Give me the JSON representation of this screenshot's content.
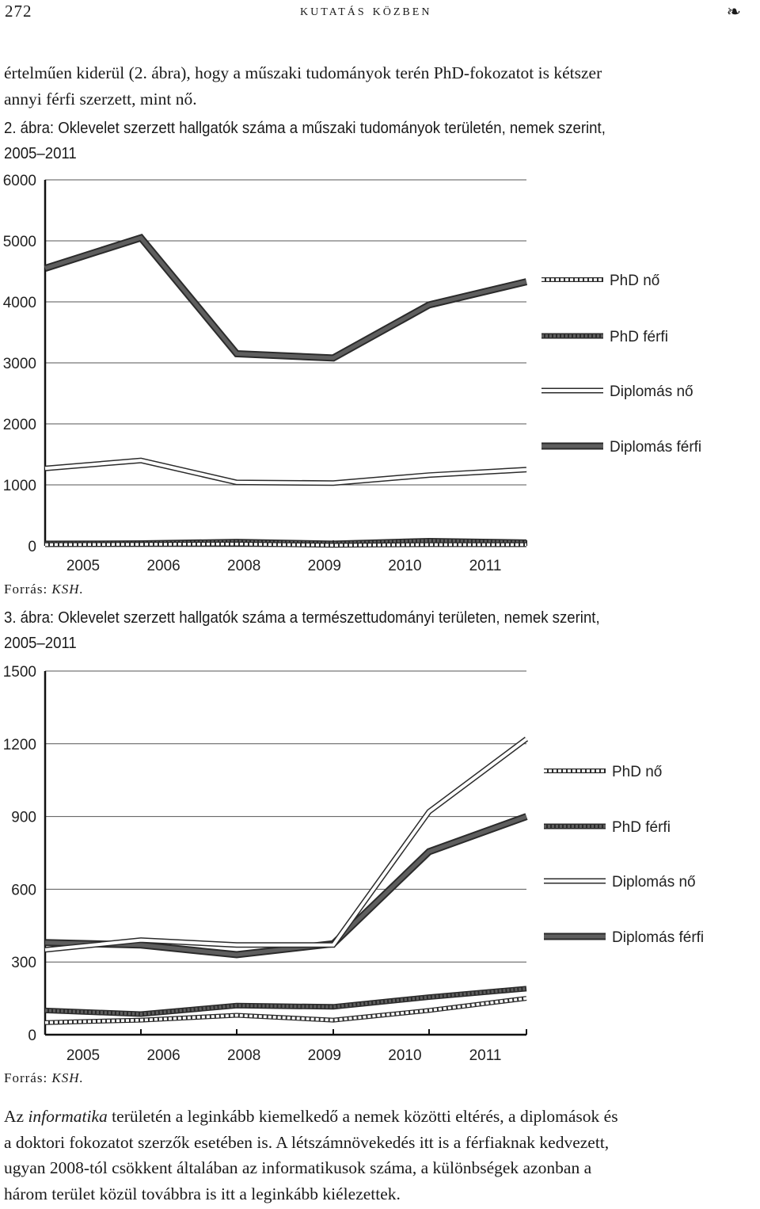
{
  "header": {
    "page_number": "272",
    "running_head": "kutatás közben",
    "ornament": "❧"
  },
  "intro_text": {
    "line1": "értelműen kiderül (2. ábra), hogy a műszaki tudományok terén PhD-fokozatot is kétszer",
    "line2": "annyi férfi szerzett, mint nő."
  },
  "figure2": {
    "caption_line1": "2. ábra: Oklevelet szerzett hallgatók száma a műszaki tudományok területén, nemek szerint,",
    "caption_line2": "2005–2011",
    "source_label": "Forrás:",
    "source_value": "KSH."
  },
  "figure3": {
    "caption_line1": "3. ábra: Oklevelet szerzett hallgatók száma a természettudományi területen, nemek szerint,",
    "caption_line2": "2005–2011",
    "source_label": "Forrás:",
    "source_value": "KSH."
  },
  "closing_text": {
    "line1_pre": "Az",
    "line1_italic": "informatika",
    "line1_post": "területén a leginkább kiemelkedő a nemek közötti eltérés, a diplomások és",
    "line2": "a doktori fokozatot szerzők esetében is. A létszámnövekedés itt is a férfiaknak kedvezett,",
    "line3": "ugyan 2008-tól csökkent általában az informatikusok száma, a különbségek azonban a",
    "line4": "három terület közül továbbra is itt a leginkább kiélezettek."
  },
  "chart_data": [
    {
      "type": "line",
      "categories": [
        "2005",
        "2006",
        "2008",
        "2009",
        "2010",
        "2011"
      ],
      "ylim": [
        0,
        6000
      ],
      "yticks": [
        0,
        1000,
        2000,
        3000,
        4000,
        5000,
        6000
      ],
      "grid": true,
      "legend_position": "right",
      "series": [
        {
          "name": "PhD nő",
          "style": "dashed-outline",
          "values": [
            20,
            25,
            30,
            10,
            20,
            20
          ]
        },
        {
          "name": "PhD férfi",
          "style": "dark-dashed",
          "values": [
            40,
            45,
            70,
            40,
            85,
            60
          ]
        },
        {
          "name": "Diplomás nő",
          "style": "light-outline",
          "values": [
            1270,
            1400,
            1040,
            1030,
            1160,
            1250
          ]
        },
        {
          "name": "Diplomás férfi",
          "style": "dark-outline",
          "values": [
            4550,
            5050,
            3150,
            3080,
            3950,
            4330
          ]
        }
      ]
    },
    {
      "type": "line",
      "categories": [
        "2005",
        "2006",
        "2008",
        "2009",
        "2010",
        "2011"
      ],
      "ylim": [
        0,
        1500
      ],
      "yticks": [
        0,
        300,
        600,
        900,
        1200,
        1500
      ],
      "grid": true,
      "legend_position": "right",
      "series": [
        {
          "name": "PhD nő",
          "style": "dashed-outline",
          "values": [
            50,
            60,
            80,
            60,
            100,
            150
          ]
        },
        {
          "name": "PhD férfi",
          "style": "dark-dashed",
          "values": [
            100,
            85,
            120,
            115,
            155,
            190
          ]
        },
        {
          "name": "Diplomás nő",
          "style": "light-outline",
          "values": [
            350,
            390,
            370,
            370,
            920,
            1220
          ]
        },
        {
          "name": "Diplomás férfi",
          "style": "dark-outline",
          "values": [
            380,
            370,
            330,
            375,
            755,
            900
          ]
        }
      ]
    }
  ],
  "colors": {
    "dark_line": "#5e5e5e",
    "outline": "#2b2b2b",
    "light_fill": "#ffffff",
    "grid": "#555555"
  }
}
